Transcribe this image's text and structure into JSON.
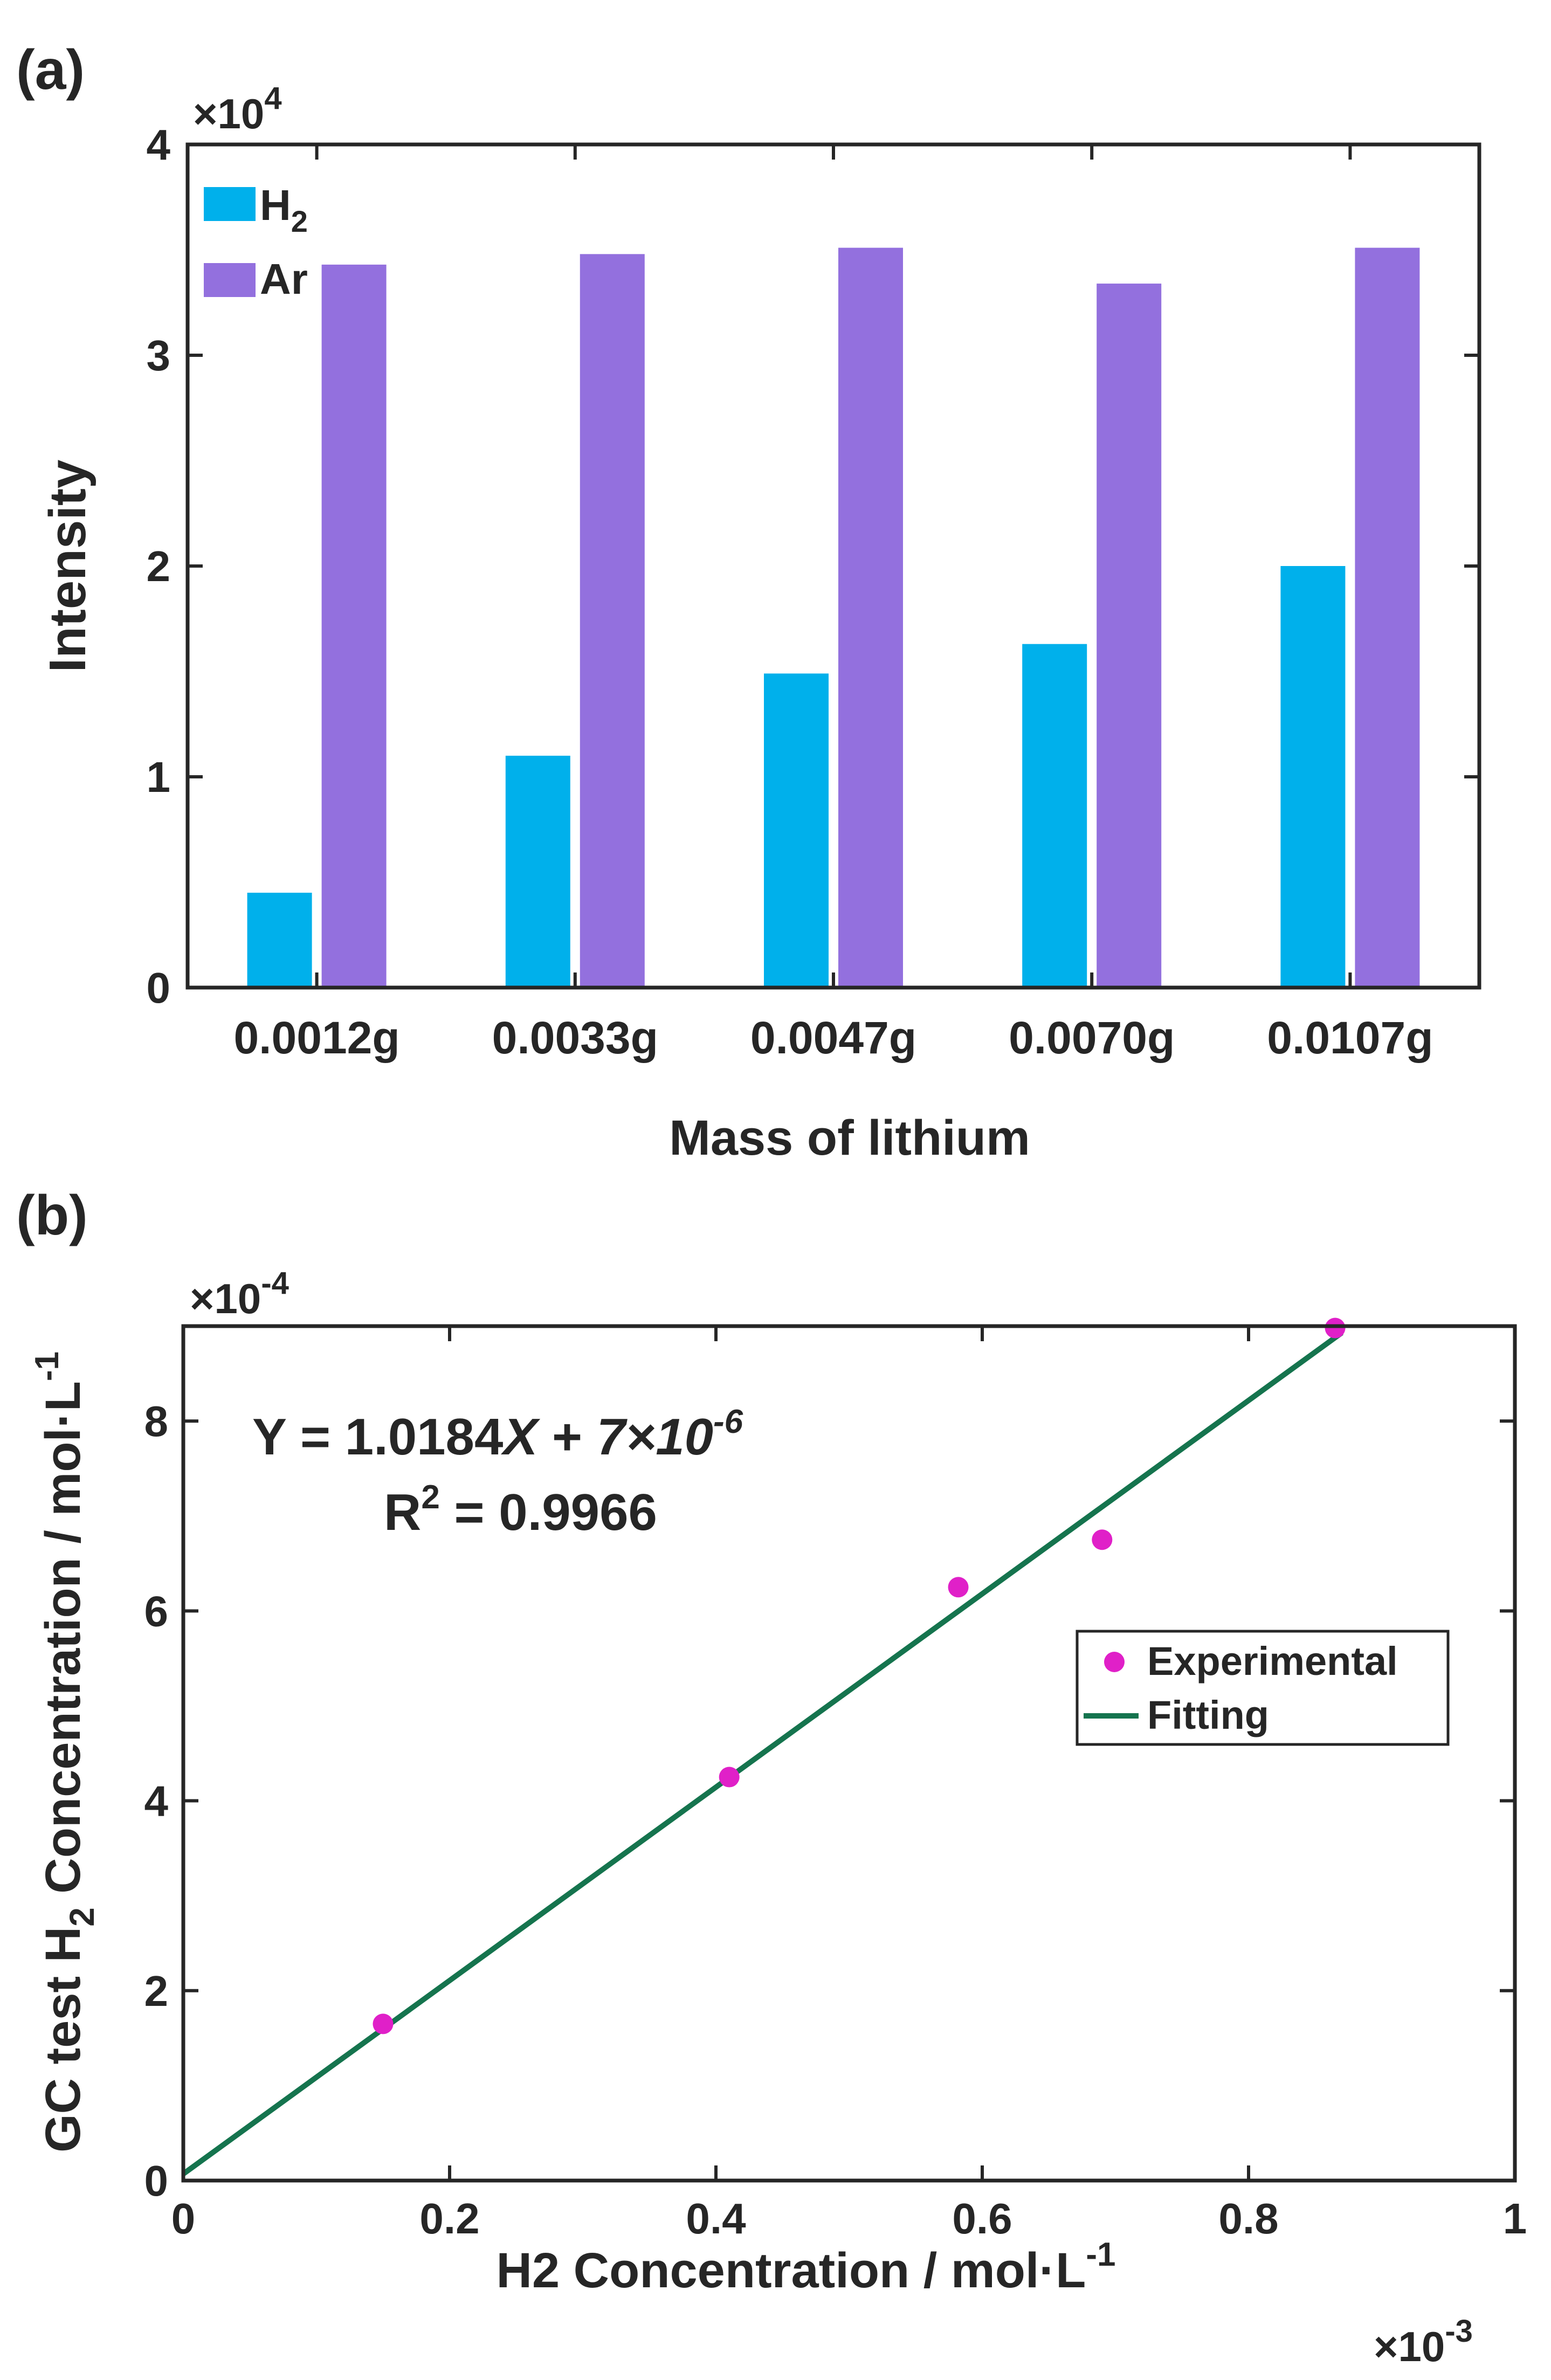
{
  "colors": {
    "h2": "#00b0eb",
    "ar": "#9370de",
    "experimental": "#e020c8",
    "fitting": "#15744e",
    "axis": "#262626"
  },
  "chart_data": [
    {
      "type": "bar",
      "panel_label": "(a)",
      "categories": [
        "0.0012g",
        "0.0033g",
        "0.0047g",
        "0.0070g",
        "0.0107g"
      ],
      "series": [
        {
          "name": "H2",
          "legend_main": "H",
          "legend_sub": "2",
          "values": [
            4500,
            11000,
            14900,
            16300,
            20000
          ]
        },
        {
          "name": "Ar",
          "legend_main": "Ar",
          "legend_sub": "",
          "values": [
            34300,
            34800,
            35100,
            33400,
            35100
          ]
        }
      ],
      "xlabel": "Mass of lithium",
      "ylabel": "Intensity",
      "ylim": [
        0,
        40000
      ],
      "yticks": [
        0,
        1,
        2,
        3,
        4
      ],
      "ytick_labels": [
        "0",
        "1",
        "2",
        "3",
        "4"
      ],
      "y_multiplier": {
        "base": "×10",
        "exp": "4"
      },
      "legend_position": "top-left",
      "grid": false
    },
    {
      "type": "scatter",
      "panel_label": "(b)",
      "series": [
        {
          "name": "Experimental",
          "kind": "points",
          "x": [
            0.15,
            0.41,
            0.582,
            0.69,
            0.865
          ],
          "y": [
            1.65,
            4.25,
            6.25,
            6.75,
            8.98
          ]
        },
        {
          "name": "Fitting",
          "kind": "line",
          "slope": 1.0184,
          "intercept": 0.07,
          "x_range": [
            0,
            0.87
          ]
        }
      ],
      "equation": {
        "lead": "Y = 1.0184",
        "var": "X",
        "plus": " + ",
        "coef": "7×10",
        "exp": "-6"
      },
      "r2": {
        "label": "R",
        "sup": "2",
        "value": " = 0.9966"
      },
      "xlabel": {
        "main": "H2 Concentration / mol·L",
        "sup": "-1"
      },
      "ylabel": {
        "part1": "GC test H",
        "sub": "2",
        "part2": " Concentration / mol·L",
        "sup": "-1"
      },
      "xlim": [
        0,
        1
      ],
      "ylim": [
        0,
        9
      ],
      "xticks": [
        0,
        0.2,
        0.4,
        0.6,
        0.8,
        1
      ],
      "xtick_labels": [
        "0",
        "0.2",
        "0.4",
        "0.6",
        "0.8",
        "1"
      ],
      "yticks": [
        0,
        2,
        4,
        6,
        8
      ],
      "ytick_labels": [
        "0",
        "2",
        "4",
        "6",
        "8"
      ],
      "x_multiplier": {
        "base": "×10",
        "exp": "-3"
      },
      "y_multiplier": {
        "base": "×10",
        "exp": "-4"
      },
      "legend_position": "middle-right",
      "grid": false
    }
  ]
}
